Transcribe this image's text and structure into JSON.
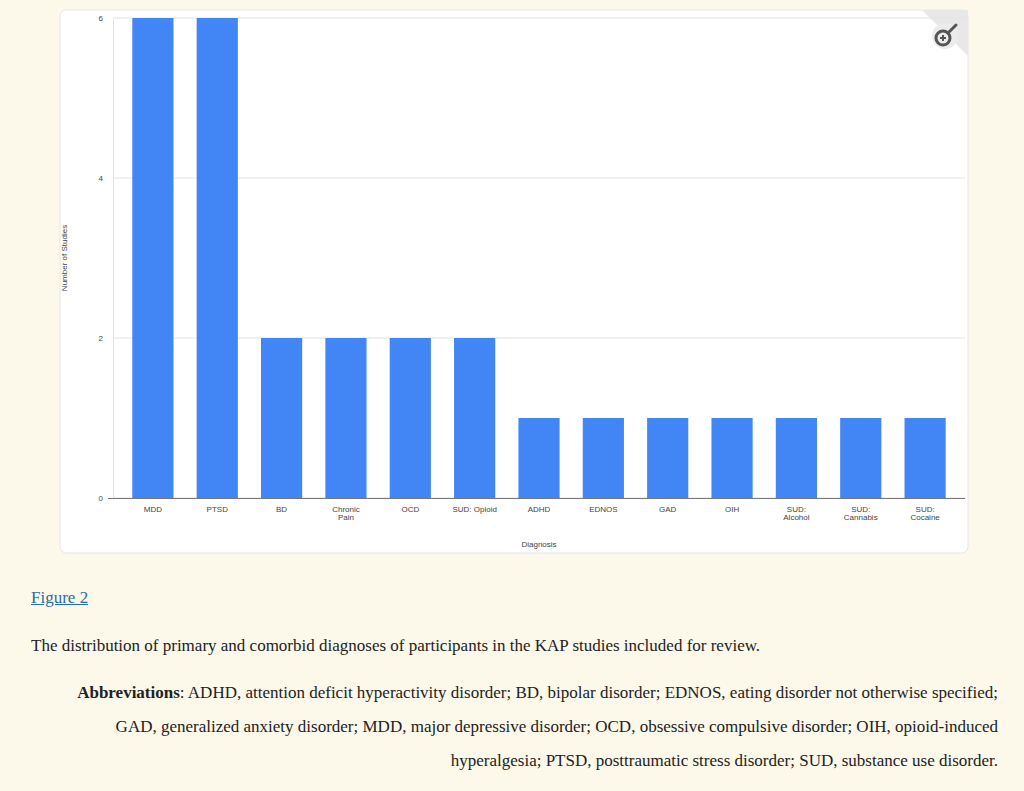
{
  "chart_data": {
    "type": "bar",
    "x_label": "Diagnosis",
    "y_label": "Number of Studies",
    "categories": [
      "MDD",
      "PTSD",
      "BD",
      "Chronic Pain",
      "OCD",
      "SUD: Opioid",
      "ADHD",
      "EDNOS",
      "GAD",
      "OIH",
      "SUD: Alcohol",
      "SUD: Cannabis",
      "SUD: Cocaine"
    ],
    "values": [
      6,
      6,
      2,
      2,
      2,
      2,
      1,
      1,
      1,
      1,
      1,
      1,
      1
    ],
    "color": "#4285f4",
    "ylim": [
      0,
      6
    ],
    "yticks": [
      0,
      2,
      4,
      6
    ],
    "grid": true
  },
  "figure": {
    "link": "Figure 2",
    "caption": "The distribution of primary and comorbid diagnoses of participants in the KAP studies included for review.",
    "abbreviations_heading": "Abbreviations",
    "abbreviations_text": ": ADHD, attention deficit hyperactivity disorder; BD, bipolar disorder; EDNOS, eating disorder not otherwise specified; GAD, generalized anxiety disorder; MDD, major depressive disorder; OCD, obsessive compulsive disorder; OIH, opioid-induced hyperalgesia; PTSD, posttraumatic stress disorder; SUD, substance use disorder."
  }
}
